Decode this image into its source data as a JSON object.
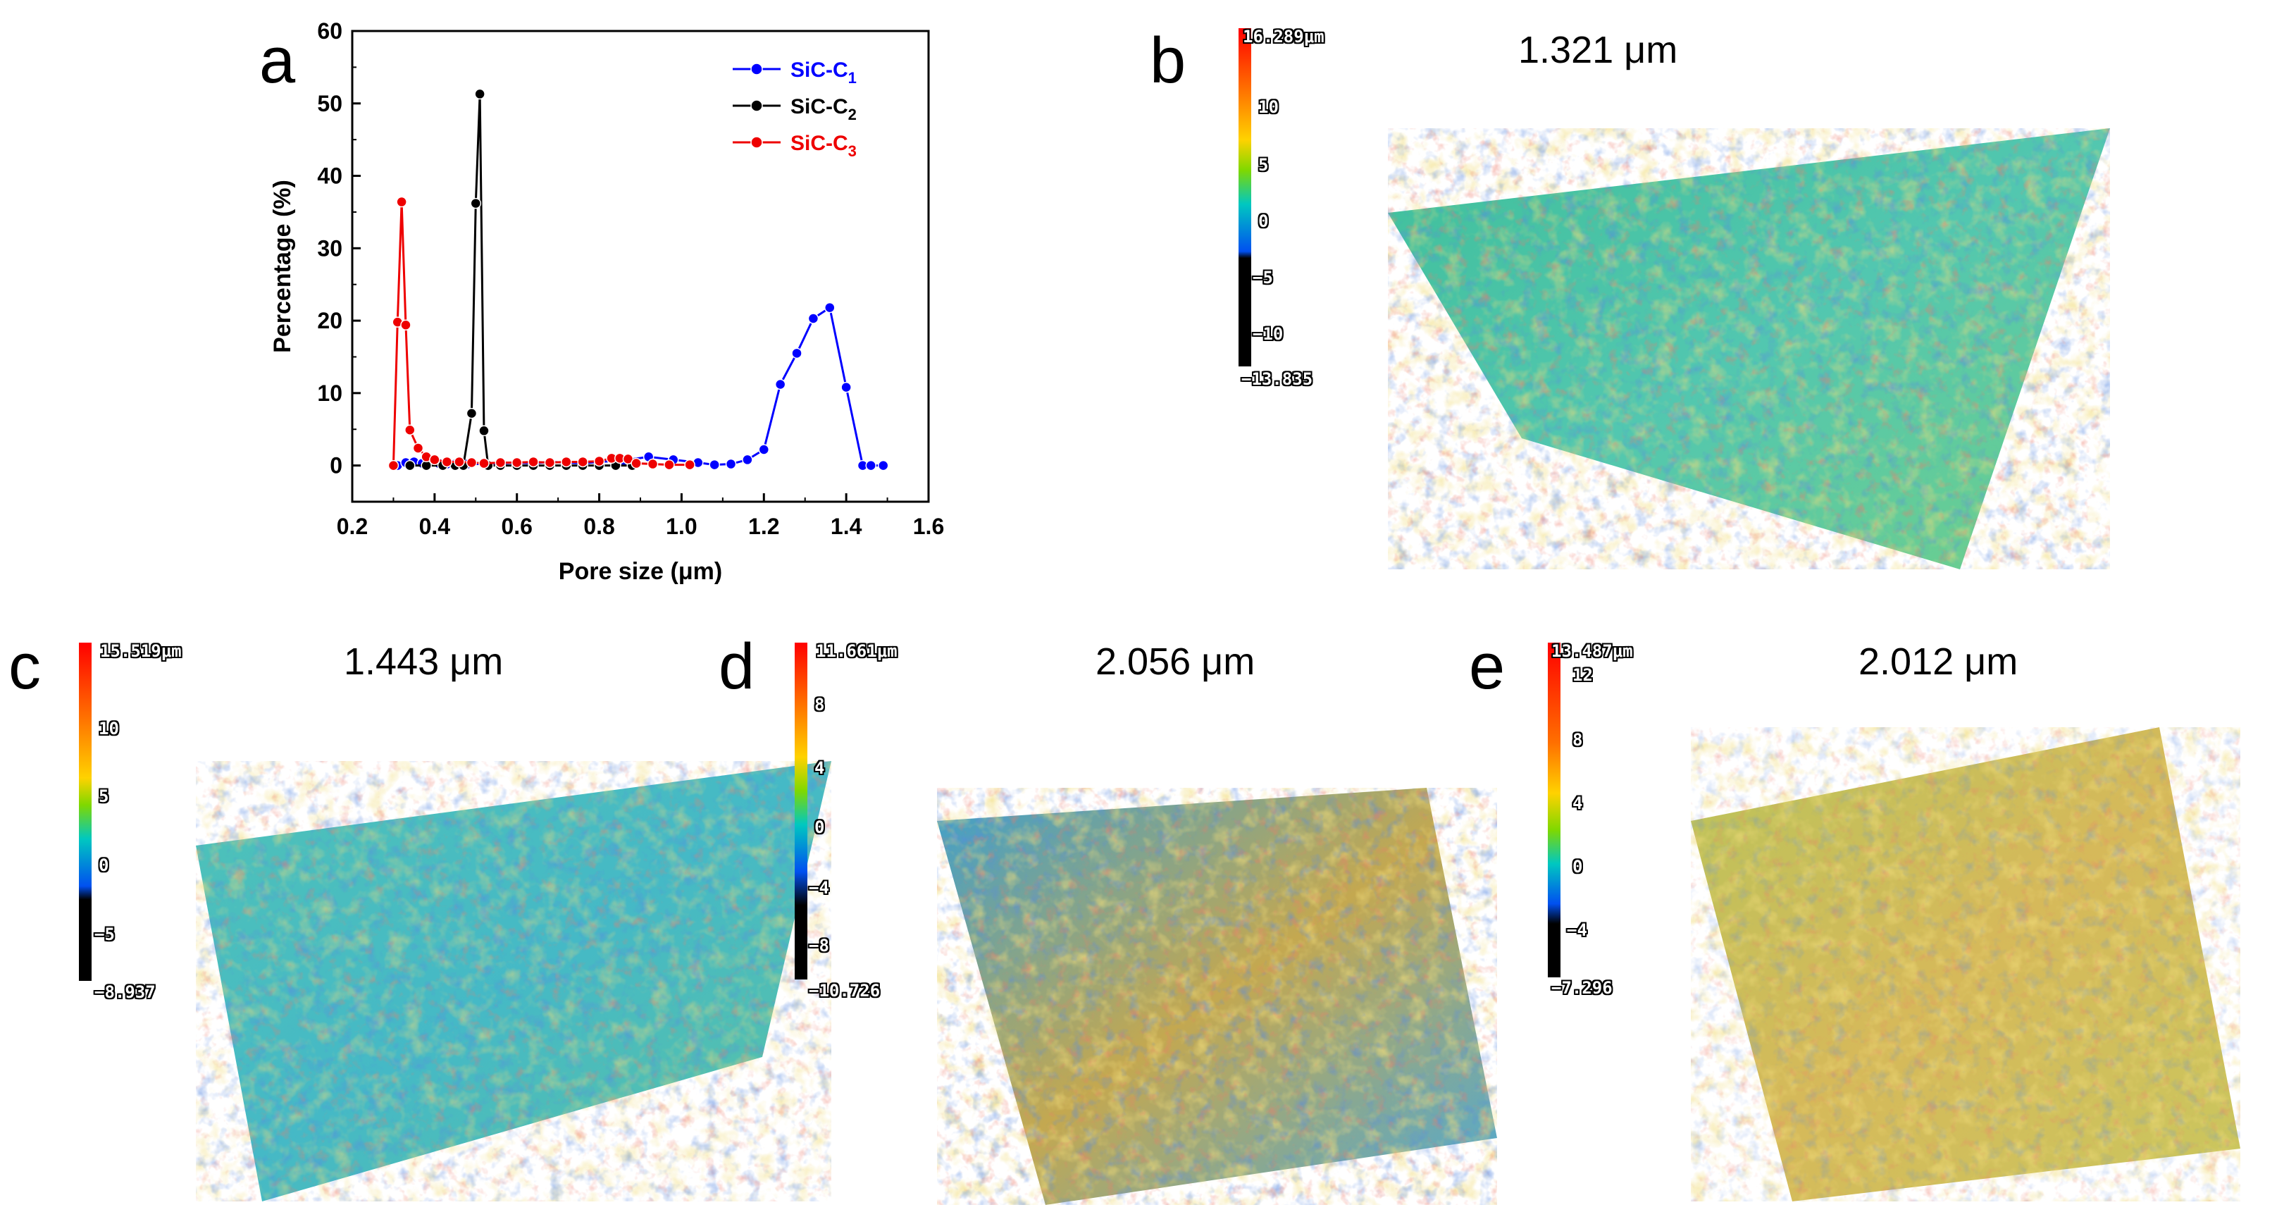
{
  "panels": {
    "a": {
      "letter": "a"
    },
    "b": {
      "letter": "b",
      "roughness": "1.321 μm",
      "scale": {
        "max": "16.289μm",
        "ticks": [
          "10",
          "5",
          "0",
          "−5",
          "−10"
        ],
        "min": "−13.835"
      }
    },
    "c": {
      "letter": "c",
      "roughness": "1.443 μm",
      "scale": {
        "max": "15.519μm",
        "ticks": [
          "10",
          "5",
          "0",
          "−5"
        ],
        "min": "−8.937"
      }
    },
    "d": {
      "letter": "d",
      "roughness": "2.056 μm",
      "scale": {
        "max": "11.661μm",
        "ticks": [
          "8",
          "4",
          "0",
          "−4",
          "−8"
        ],
        "min": "−10.726"
      }
    },
    "e": {
      "letter": "e",
      "roughness": "2.012 μm",
      "scale": {
        "max": "13.487μm",
        "ticks": [
          "12",
          "8",
          "4",
          "0",
          "−4"
        ],
        "min": "−7.296"
      }
    }
  },
  "chart_data": {
    "type": "line",
    "title": "",
    "xlabel": "Pore size (μm)",
    "ylabel": "Percentage (%)",
    "xlim": [
      0.2,
      1.6
    ],
    "ylim": [
      -5,
      60
    ],
    "xticks": [
      "0.2",
      "0.4",
      "0.6",
      "0.8",
      "1.0",
      "1.2",
      "1.4",
      "1.6"
    ],
    "yticks": [
      "0",
      "10",
      "20",
      "30",
      "40",
      "50",
      "60"
    ],
    "legend_position": "top-right",
    "series": [
      {
        "name": "SiC-C",
        "subscript": "1",
        "color": "#0000ff",
        "x": [
          0.31,
          0.33,
          0.35,
          0.37,
          0.39,
          0.41,
          0.43,
          0.45,
          0.48,
          0.52,
          0.56,
          0.6,
          0.64,
          0.68,
          0.72,
          0.76,
          0.8,
          0.86,
          0.92,
          0.98,
          1.04,
          1.08,
          1.12,
          1.16,
          1.2,
          1.24,
          1.28,
          1.32,
          1.36,
          1.4,
          1.44,
          1.46,
          1.49
        ],
        "y": [
          0,
          0.4,
          0.5,
          0.3,
          0.8,
          0.3,
          0.2,
          0.2,
          0.2,
          0.2,
          0.3,
          0.4,
          0.3,
          0.5,
          0.4,
          0.3,
          0.5,
          0.7,
          1.2,
          0.8,
          0.4,
          0.1,
          0.2,
          0.8,
          2.2,
          11.2,
          15.5,
          20.3,
          21.8,
          10.8,
          0,
          0,
          0
        ]
      },
      {
        "name": "SiC-C",
        "subscript": "2",
        "color": "#000000",
        "x": [
          0.34,
          0.38,
          0.42,
          0.45,
          0.47,
          0.49,
          0.5,
          0.51,
          0.52,
          0.53,
          0.56,
          0.6,
          0.64,
          0.68,
          0.72,
          0.76,
          0.8,
          0.84,
          0.88
        ],
        "y": [
          0,
          0,
          0,
          0,
          0,
          7.2,
          36.2,
          51.3,
          4.8,
          0,
          0,
          0,
          0,
          0,
          0,
          0,
          0,
          0,
          0
        ]
      },
      {
        "name": "SiC-C",
        "subscript": "3",
        "color": "#ee0000",
        "x": [
          0.3,
          0.31,
          0.32,
          0.33,
          0.34,
          0.36,
          0.38,
          0.4,
          0.43,
          0.46,
          0.49,
          0.52,
          0.56,
          0.6,
          0.64,
          0.68,
          0.72,
          0.76,
          0.8,
          0.83,
          0.85,
          0.87,
          0.89,
          0.93,
          0.97,
          1.02
        ],
        "y": [
          0,
          19.8,
          36.4,
          19.4,
          4.9,
          2.4,
          1.2,
          0.8,
          0.5,
          0.5,
          0.4,
          0.3,
          0.4,
          0.4,
          0.5,
          0.4,
          0.5,
          0.5,
          0.6,
          1.0,
          1.0,
          0.9,
          0.3,
          0.2,
          0.1,
          0.1
        ]
      }
    ]
  }
}
